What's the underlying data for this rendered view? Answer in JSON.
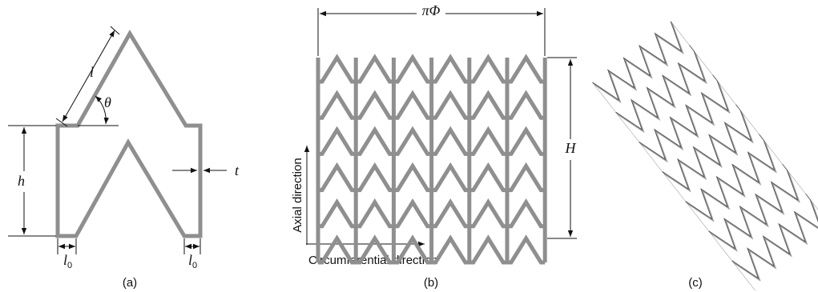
{
  "panel_a": {
    "caption": "(a)",
    "length": "l",
    "angle": "θ",
    "height": "h",
    "thickness": "t",
    "offsets": [
      {
        "symbol": "l",
        "subscript": "0"
      },
      {
        "symbol": "l",
        "subscript": "0"
      }
    ]
  },
  "panel_b": {
    "caption": "(b)",
    "circumference": "πΦ",
    "height": "H",
    "axial": "Axial direction",
    "circumferential": "Circumferential direction"
  },
  "panel_c": {
    "caption": "(c)"
  }
}
